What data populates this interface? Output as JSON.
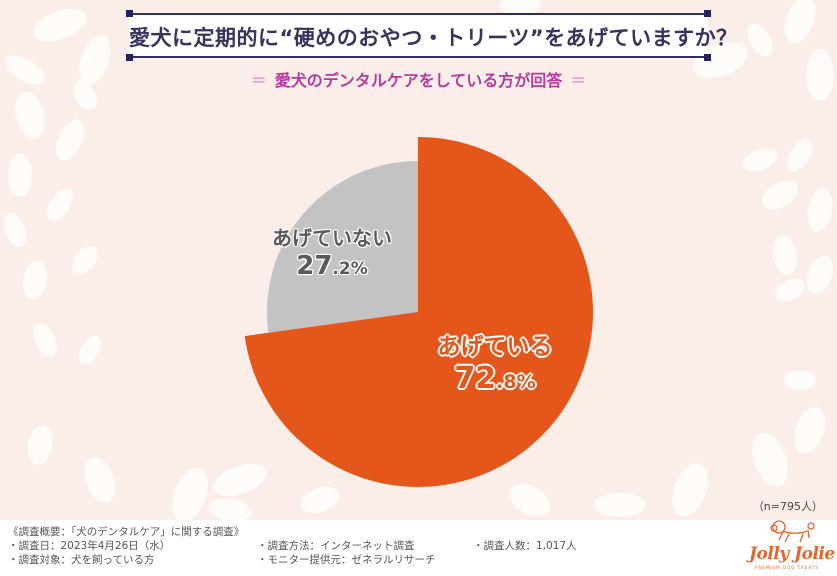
{
  "header": {
    "title": "愛犬に定期的に“硬めのおやつ・トリーツ”をあげていますか？",
    "subtitle_eq": "＝",
    "subtitle": "愛犬のデンタルケアをしている方が回答"
  },
  "colors": {
    "background": "#fbede7",
    "title_border": "#2f2f6a",
    "title_text": "#35345f",
    "subtitle": "#b83aa0",
    "slice_yes": "#e5561a",
    "slice_no": "#c3c3c3",
    "logo": "#e8642a"
  },
  "chart_data": {
    "type": "pie",
    "title": "愛犬に定期的に“硬めのおやつ・トリーツ”をあげていますか？",
    "subtitle": "愛犬のデンタルケアをしている方が回答",
    "categories": [
      "あげている",
      "あげていない"
    ],
    "values": [
      72.8,
      27.2
    ],
    "unit": "%",
    "colors": [
      "#e5561a",
      "#c3c3c3"
    ],
    "sample_size": "n=795人",
    "labels": [
      {
        "name": "あげている",
        "int": "72",
        "dec": ".8%"
      },
      {
        "name": "あげていない",
        "int": "27",
        "dec": ".2%"
      }
    ]
  },
  "sample_note": "（n=795人）",
  "footer": {
    "heading": "《調査概要：「犬のデンタルケア」に関する調査》",
    "date": "・調査日：2023年4月26日（水）",
    "target": "・調査対象：犬を飼っている方",
    "method": "・調査方法：インターネット調査",
    "monitor": "・モニター提供元：ゼネラルリサーチ",
    "count": "・調査人数：1,017人"
  },
  "logo": {
    "name": "Jolly Jolie",
    "tagline": "PREMIUM DOG TREATS",
    "icon": "poodle-icon"
  }
}
